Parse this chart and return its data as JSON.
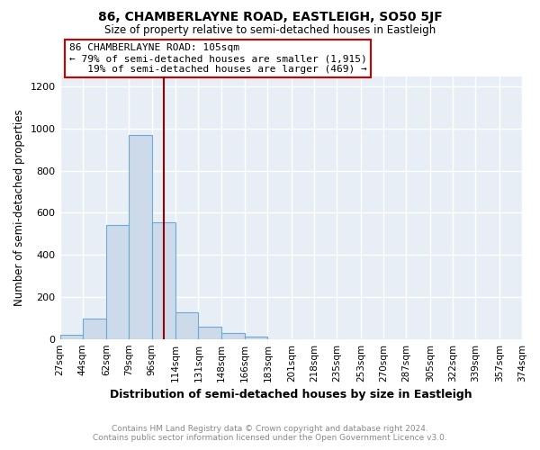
{
  "title": "86, CHAMBERLAYNE ROAD, EASTLEIGH, SO50 5JF",
  "subtitle": "Size of property relative to semi-detached houses in Eastleigh",
  "xlabel": "Distribution of semi-detached houses by size in Eastleigh",
  "ylabel": "Number of semi-detached properties",
  "bin_edges": [
    27,
    44,
    62,
    79,
    96,
    114,
    131,
    148,
    166,
    183,
    201,
    218,
    235,
    253,
    270,
    287,
    305,
    322,
    339,
    357,
    374
  ],
  "bin_counts": [
    20,
    95,
    540,
    970,
    555,
    125,
    60,
    28,
    12,
    0,
    0,
    0,
    0,
    0,
    0,
    0,
    0,
    0,
    0,
    0
  ],
  "bar_facecolor": "#ccdaea",
  "bar_edgecolor": "#6aaad4",
  "property_size": 105,
  "vline_color": "#990000",
  "annotation_box_edgecolor": "#cc0000",
  "annotation_text_line1": "86 CHAMBERLAYNE ROAD: 105sqm",
  "annotation_text_line2": "← 79% of semi-detached houses are smaller (1,915)",
  "annotation_text_line3": "   19% of semi-detached houses are larger (469) →",
  "ylim": [
    0,
    1250
  ],
  "yticks": [
    0,
    200,
    400,
    600,
    800,
    1000,
    1200
  ],
  "tick_labels": [
    "27sqm",
    "44sqm",
    "62sqm",
    "79sqm",
    "96sqm",
    "114sqm",
    "131sqm",
    "148sqm",
    "166sqm",
    "183sqm",
    "201sqm",
    "218sqm",
    "235sqm",
    "253sqm",
    "270sqm",
    "287sqm",
    "305sqm",
    "322sqm",
    "339sqm",
    "357sqm",
    "374sqm"
  ],
  "footer_line1": "Contains HM Land Registry data © Crown copyright and database right 2024.",
  "footer_line2": "Contains public sector information licensed under the Open Government Licence v3.0.",
  "background_color": "#ffffff",
  "plot_bg_color": "#e8eef5",
  "grid_color": "#ffffff"
}
